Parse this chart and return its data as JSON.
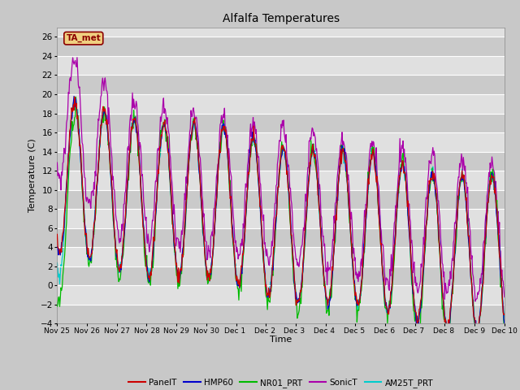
{
  "title": "Alfalfa Temperatures",
  "ylabel": "Temperature (C)",
  "xlabel": "Time",
  "annotation_text": "TA_met",
  "annotation_color": "#8B0000",
  "annotation_bg": "#F0D080",
  "ylim": [
    -4,
    27
  ],
  "yticks": [
    -4,
    -2,
    0,
    2,
    4,
    6,
    8,
    10,
    12,
    14,
    16,
    18,
    20,
    22,
    24,
    26
  ],
  "series_colors": {
    "PanelT": "#CC0000",
    "HMP60": "#0000CC",
    "NR01_PRT": "#00BB00",
    "SonicT": "#AA00AA",
    "AM25T_PRT": "#00CCCC"
  },
  "tick_labels": [
    "Nov 25",
    "Nov 26",
    "Nov 27",
    "Nov 28",
    "Nov 29",
    "Nov 30",
    "Dec 1 ",
    "Dec 2 ",
    "Dec 3 ",
    "Dec 4 ",
    "Dec 5 ",
    "Dec 6 ",
    "Dec 7 ",
    "Dec 8 ",
    "Dec 9",
    "Dec 10"
  ],
  "legend_entries": [
    "PanelT",
    "HMP60",
    "NR01_PRT",
    "SonicT",
    "AM25T_PRT"
  ],
  "fig_bg": "#C8C8C8",
  "plot_bg": "#E0E0E0",
  "grid_color": "#FFFFFF",
  "stripe_color": "#D8D8D8"
}
